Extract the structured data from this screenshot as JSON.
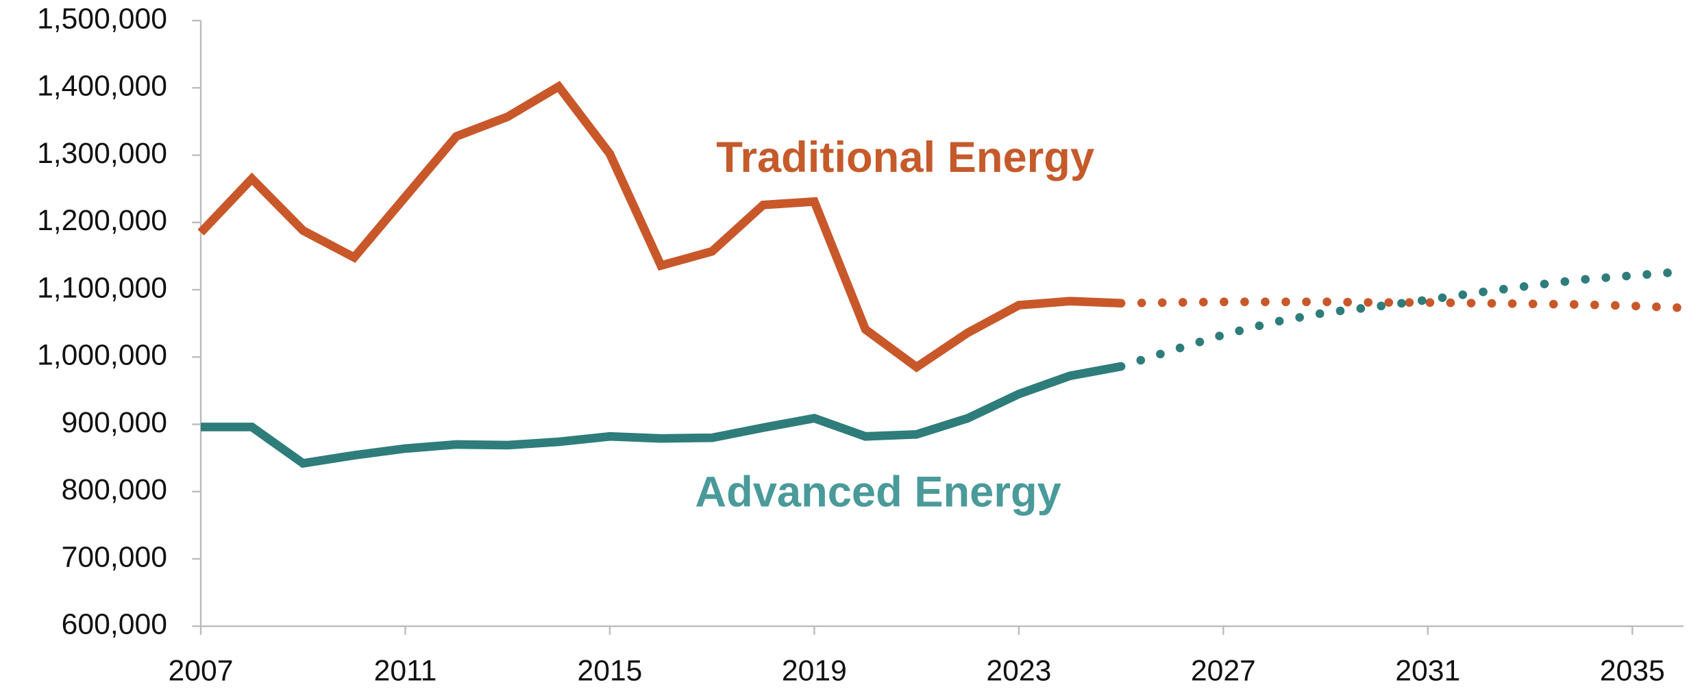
{
  "chart_data": {
    "type": "line",
    "x": [
      2007,
      2008,
      2009,
      2010,
      2011,
      2012,
      2013,
      2014,
      2015,
      2016,
      2017,
      2018,
      2019,
      2020,
      2021,
      2022,
      2023,
      2024,
      2025,
      2026,
      2027,
      2028,
      2029,
      2030,
      2031,
      2032,
      2033,
      2034,
      2035,
      2036
    ],
    "series": [
      {
        "name": "Traditional Energy",
        "color": "#c8582a",
        "label_color": "#c55a2b",
        "values": [
          1185000,
          1265000,
          1188000,
          1148000,
          1238000,
          1328000,
          1357000,
          1402000,
          1302000,
          1136000,
          1157000,
          1226000,
          1231000,
          1041000,
          985000,
          1036000,
          1077000,
          1083000,
          1080000,
          null,
          null,
          null,
          null,
          null,
          null,
          null,
          null,
          null,
          null,
          null
        ],
        "projection": [
          null,
          null,
          null,
          null,
          null,
          null,
          null,
          null,
          null,
          null,
          null,
          null,
          null,
          null,
          null,
          null,
          null,
          null,
          1080000,
          1081000,
          1082000,
          1082000,
          1082000,
          1081000,
          1081000,
          1080000,
          1079000,
          1078000,
          1076000,
          1073000
        ]
      },
      {
        "name": "Advanced Energy",
        "color": "#2e7d7b",
        "label_color": "#4a9a9a",
        "values": [
          896000,
          896000,
          842000,
          854000,
          864000,
          870000,
          869000,
          874000,
          882000,
          879000,
          880000,
          895000,
          909000,
          882000,
          885000,
          909000,
          945000,
          972000,
          986000,
          null,
          null,
          null,
          null,
          null,
          null,
          null,
          null,
          null,
          null,
          null
        ],
        "projection": [
          null,
          null,
          null,
          null,
          null,
          null,
          null,
          null,
          null,
          null,
          null,
          null,
          null,
          null,
          null,
          null,
          null,
          null,
          986000,
          1010000,
          1033000,
          1052000,
          1066000,
          1075000,
          1085000,
          1096000,
          1106000,
          1115000,
          1121000,
          1127000
        ]
      }
    ],
    "xlim": [
      2007,
      2036
    ],
    "xticks": [
      2007,
      2011,
      2015,
      2019,
      2023,
      2027,
      2031,
      2035
    ],
    "ylim": [
      600000,
      1500000
    ],
    "yticks": [
      {
        "value": 600000,
        "label": "600,000"
      },
      {
        "value": 700000,
        "label": "700,000"
      },
      {
        "value": 800000,
        "label": "800,000"
      },
      {
        "value": 900000,
        "label": "900,000"
      },
      {
        "value": 1000000,
        "label": "1,000,000"
      },
      {
        "value": 1100000,
        "label": "1,100,000"
      },
      {
        "value": 1200000,
        "label": "1,200,000"
      },
      {
        "value": 1300000,
        "label": "1,300,000"
      },
      {
        "value": 1400000,
        "label": "1,400,000"
      },
      {
        "value": 1500000,
        "label": "1,500,000"
      }
    ]
  }
}
